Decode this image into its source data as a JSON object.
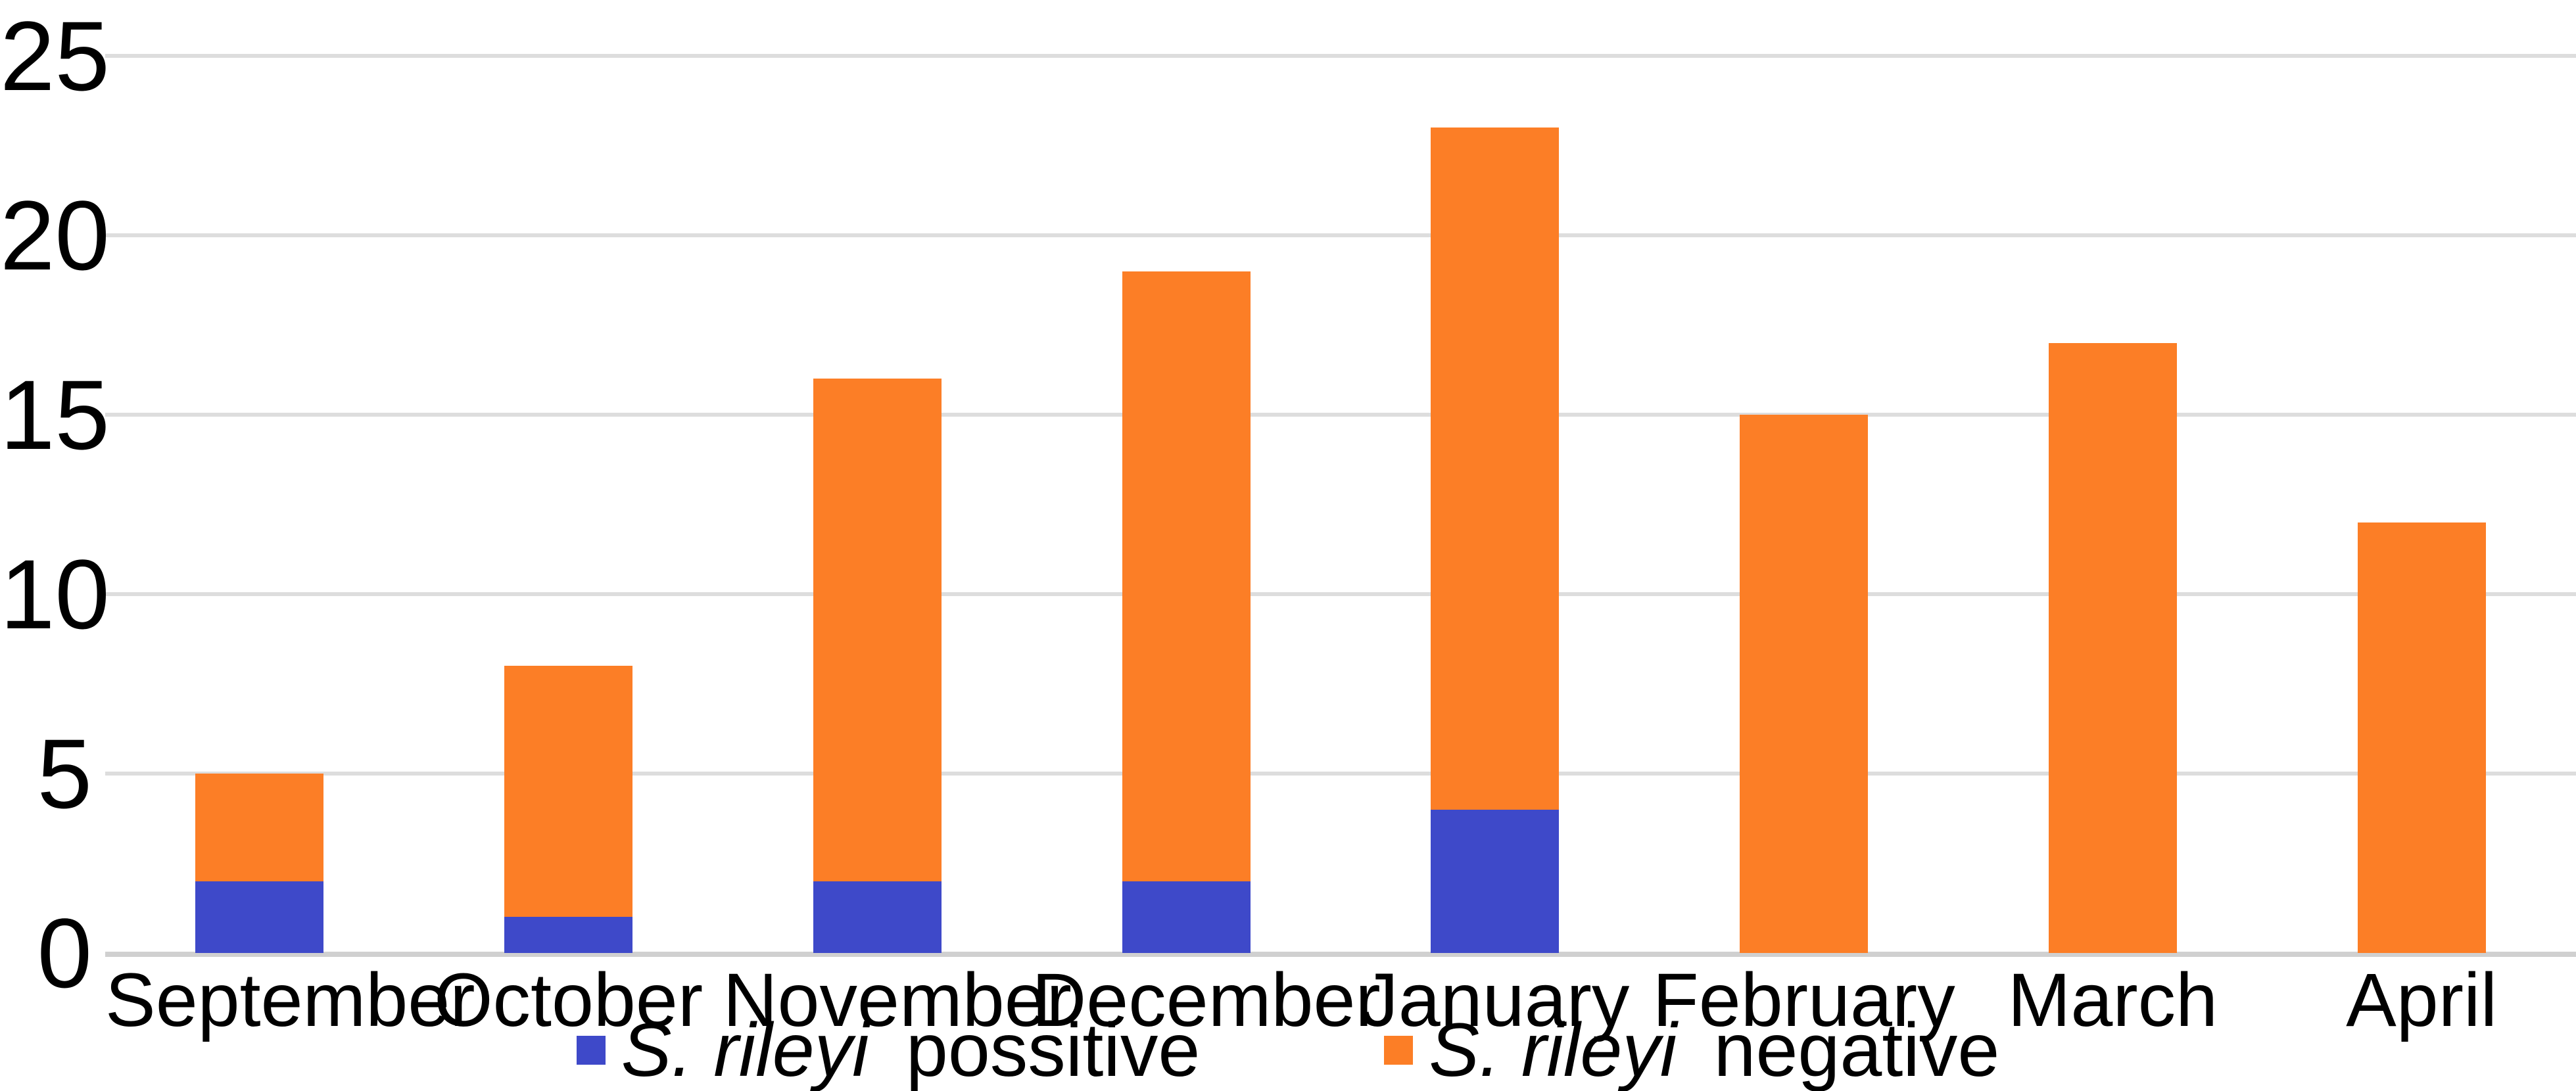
{
  "chart_data": {
    "type": "bar",
    "stacked": true,
    "categories": [
      "September",
      "October",
      "November",
      "December",
      "January",
      "February",
      "March",
      "April"
    ],
    "series": [
      {
        "name": "S. rileyi possitive",
        "label_italic": "S. rileyi",
        "label_rest": "possitive",
        "color": "#3E49C9",
        "values": [
          2,
          1,
          2,
          2,
          4,
          0,
          0,
          0
        ]
      },
      {
        "name": "S. rileyi negative",
        "label_italic": "S. rileyi",
        "label_rest": "negative",
        "color": "#FC7E26",
        "values": [
          3,
          7,
          14,
          17,
          19,
          15,
          17,
          12
        ]
      }
    ],
    "stack_totals": [
      5,
      8,
      16,
      19,
      23,
      15,
      17,
      12
    ],
    "yticks": [
      0,
      5,
      10,
      15,
      20,
      25
    ],
    "ylim": [
      0,
      25
    ],
    "grid": true,
    "legend_position": "bottom"
  },
  "colors": {
    "background": "#FFFFFF",
    "gridline": "#DDDDDD",
    "axis_line": "#D0D0D0",
    "text": "#000000",
    "series_possitive": "#3E49C9",
    "series_negative": "#FC7E26"
  }
}
